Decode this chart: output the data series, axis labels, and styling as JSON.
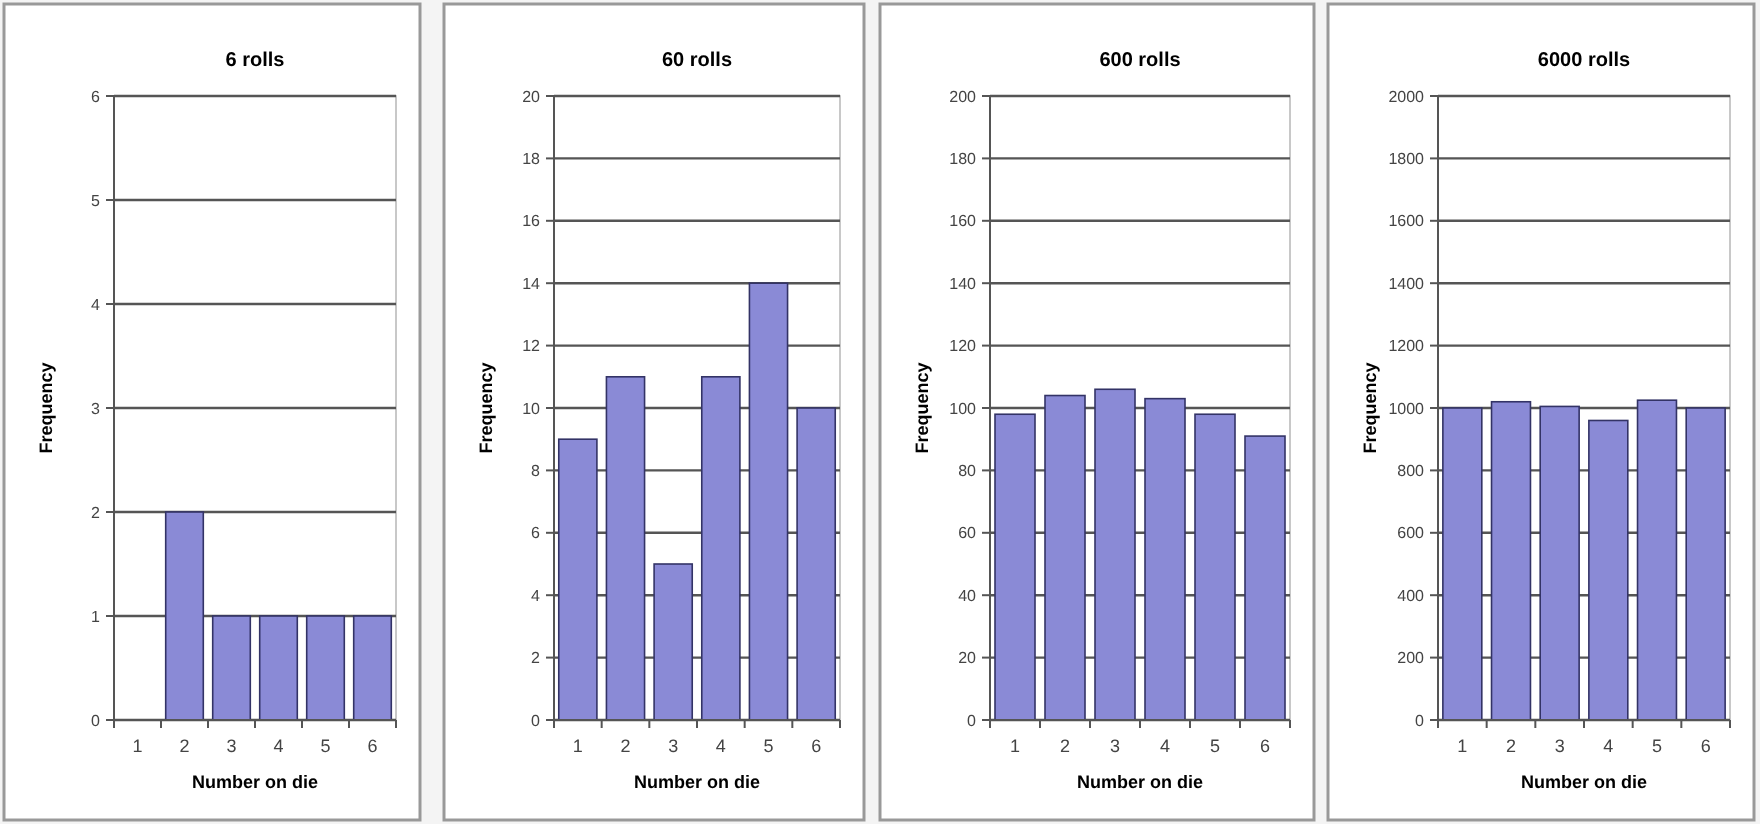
{
  "chart_data": [
    {
      "type": "bar",
      "title": "6 rolls",
      "xlabel": "Number on die",
      "ylabel": "Frequency",
      "categories": [
        "1",
        "2",
        "3",
        "4",
        "5",
        "6"
      ],
      "values": [
        0,
        2,
        1,
        1,
        1,
        1
      ],
      "color": "#8a8ad6",
      "ylim": [
        0,
        6
      ],
      "yticks": [
        0,
        1,
        2,
        3,
        4,
        5,
        6
      ],
      "grid": "y"
    },
    {
      "type": "bar",
      "title": "60 rolls",
      "xlabel": "Number on die",
      "ylabel": "Frequency",
      "categories": [
        "1",
        "2",
        "3",
        "4",
        "5",
        "6"
      ],
      "values": [
        9,
        11,
        5,
        11,
        14,
        10
      ],
      "color": "#8a8ad6",
      "ylim": [
        0,
        20
      ],
      "yticks": [
        0,
        2,
        4,
        6,
        8,
        10,
        12,
        14,
        16,
        18,
        20
      ],
      "grid": "y"
    },
    {
      "type": "bar",
      "title": "600 rolls",
      "xlabel": "Number on die",
      "ylabel": "Frequency",
      "categories": [
        "1",
        "2",
        "3",
        "4",
        "5",
        "6"
      ],
      "values": [
        98,
        104,
        106,
        103,
        98,
        91
      ],
      "color": "#8a8ad6",
      "ylim": [
        0,
        200
      ],
      "yticks": [
        0,
        20,
        40,
        60,
        80,
        100,
        120,
        140,
        160,
        180,
        200
      ],
      "grid": "y"
    },
    {
      "type": "bar",
      "title": "6000 rolls",
      "xlabel": "Number on die",
      "ylabel": "Frequency",
      "categories": [
        "1",
        "2",
        "3",
        "4",
        "5",
        "6"
      ],
      "values": [
        1000,
        1020,
        1005,
        960,
        1025,
        1000
      ],
      "color": "#8a8ad6",
      "ylim": [
        0,
        2000
      ],
      "yticks": [
        0,
        200,
        400,
        600,
        800,
        1000,
        1200,
        1400,
        1600,
        1800,
        2000
      ],
      "grid": "y"
    }
  ]
}
